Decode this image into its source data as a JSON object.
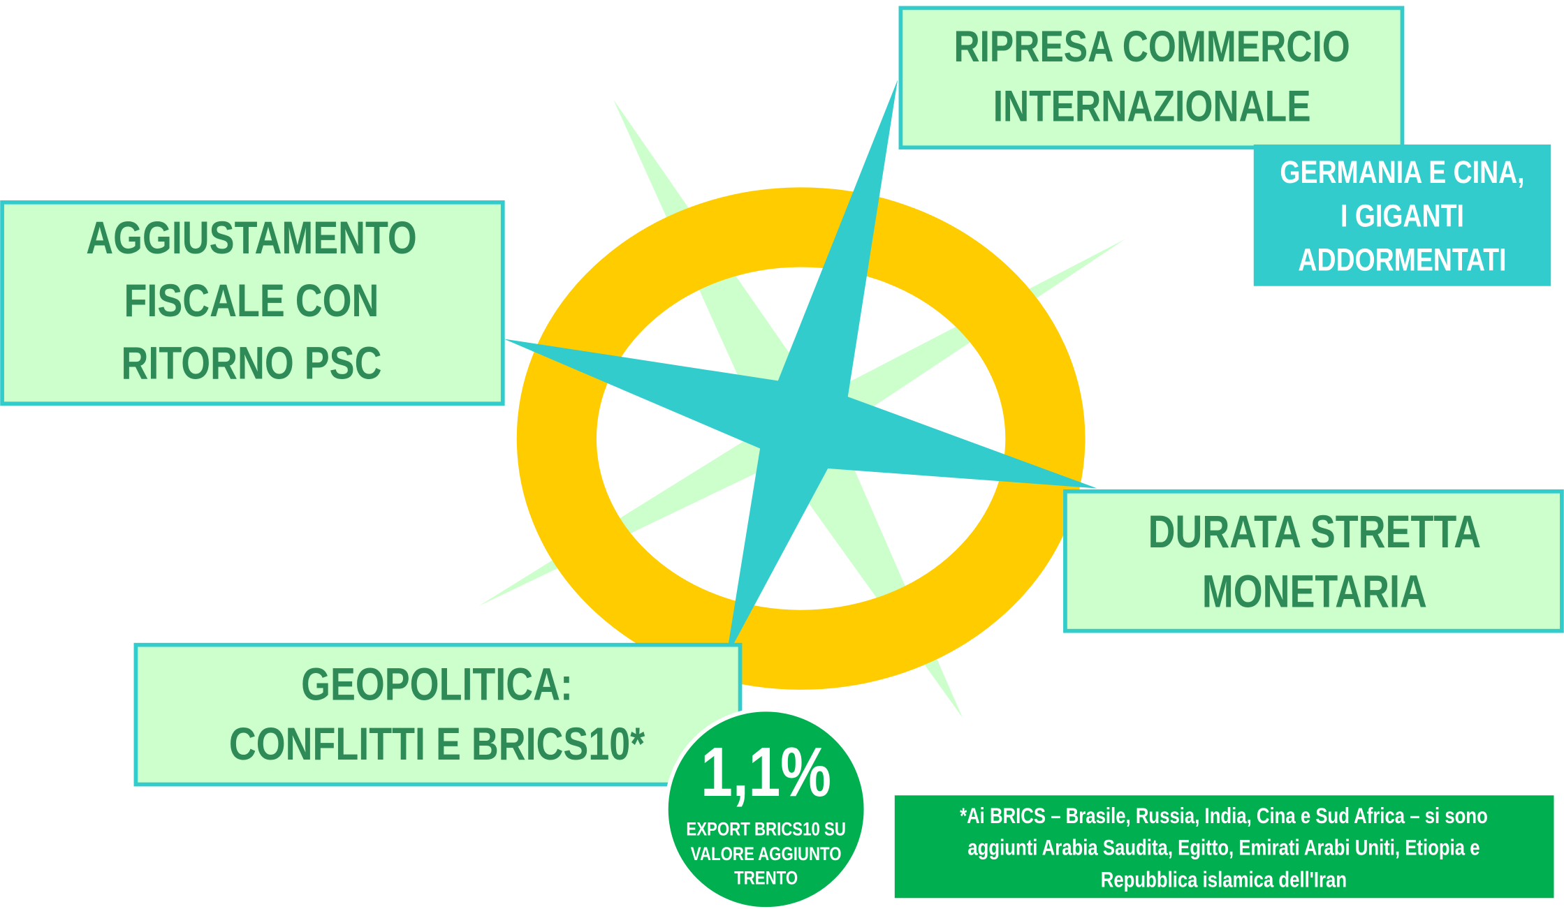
{
  "compass": {
    "north": {
      "lines": [
        "RIPRESA COMMERCIO",
        "INTERNAZIONALE"
      ]
    },
    "north_note": {
      "lines": [
        "GERMANIA E CINA,",
        "I GIGANTI",
        "ADDORMENTATI"
      ]
    },
    "west": {
      "lines": [
        "AGGIUSTAMENTO",
        "FISCALE CON",
        "RITORNO PSC"
      ]
    },
    "east": {
      "lines": [
        "DURATA STRETTA",
        "MONETARIA"
      ]
    },
    "south": {
      "lines": [
        "GEOPOLITICA:",
        "CONFLITTI E BRICS10*"
      ]
    }
  },
  "badge": {
    "value": "1,1%",
    "caption": [
      "EXPORT BRICS10 SU",
      "VALORE AGGIUNTO",
      "TRENTO"
    ]
  },
  "footnote": {
    "lines": [
      "*Ai BRICS – Brasile, Russia, India, Cina e Sud Africa – si sono",
      "aggiunti Arabia Saudita, Egitto, Emirati Arabi Uniti, Etiopia e",
      "Repubblica islamica dell'Iran"
    ]
  }
}
